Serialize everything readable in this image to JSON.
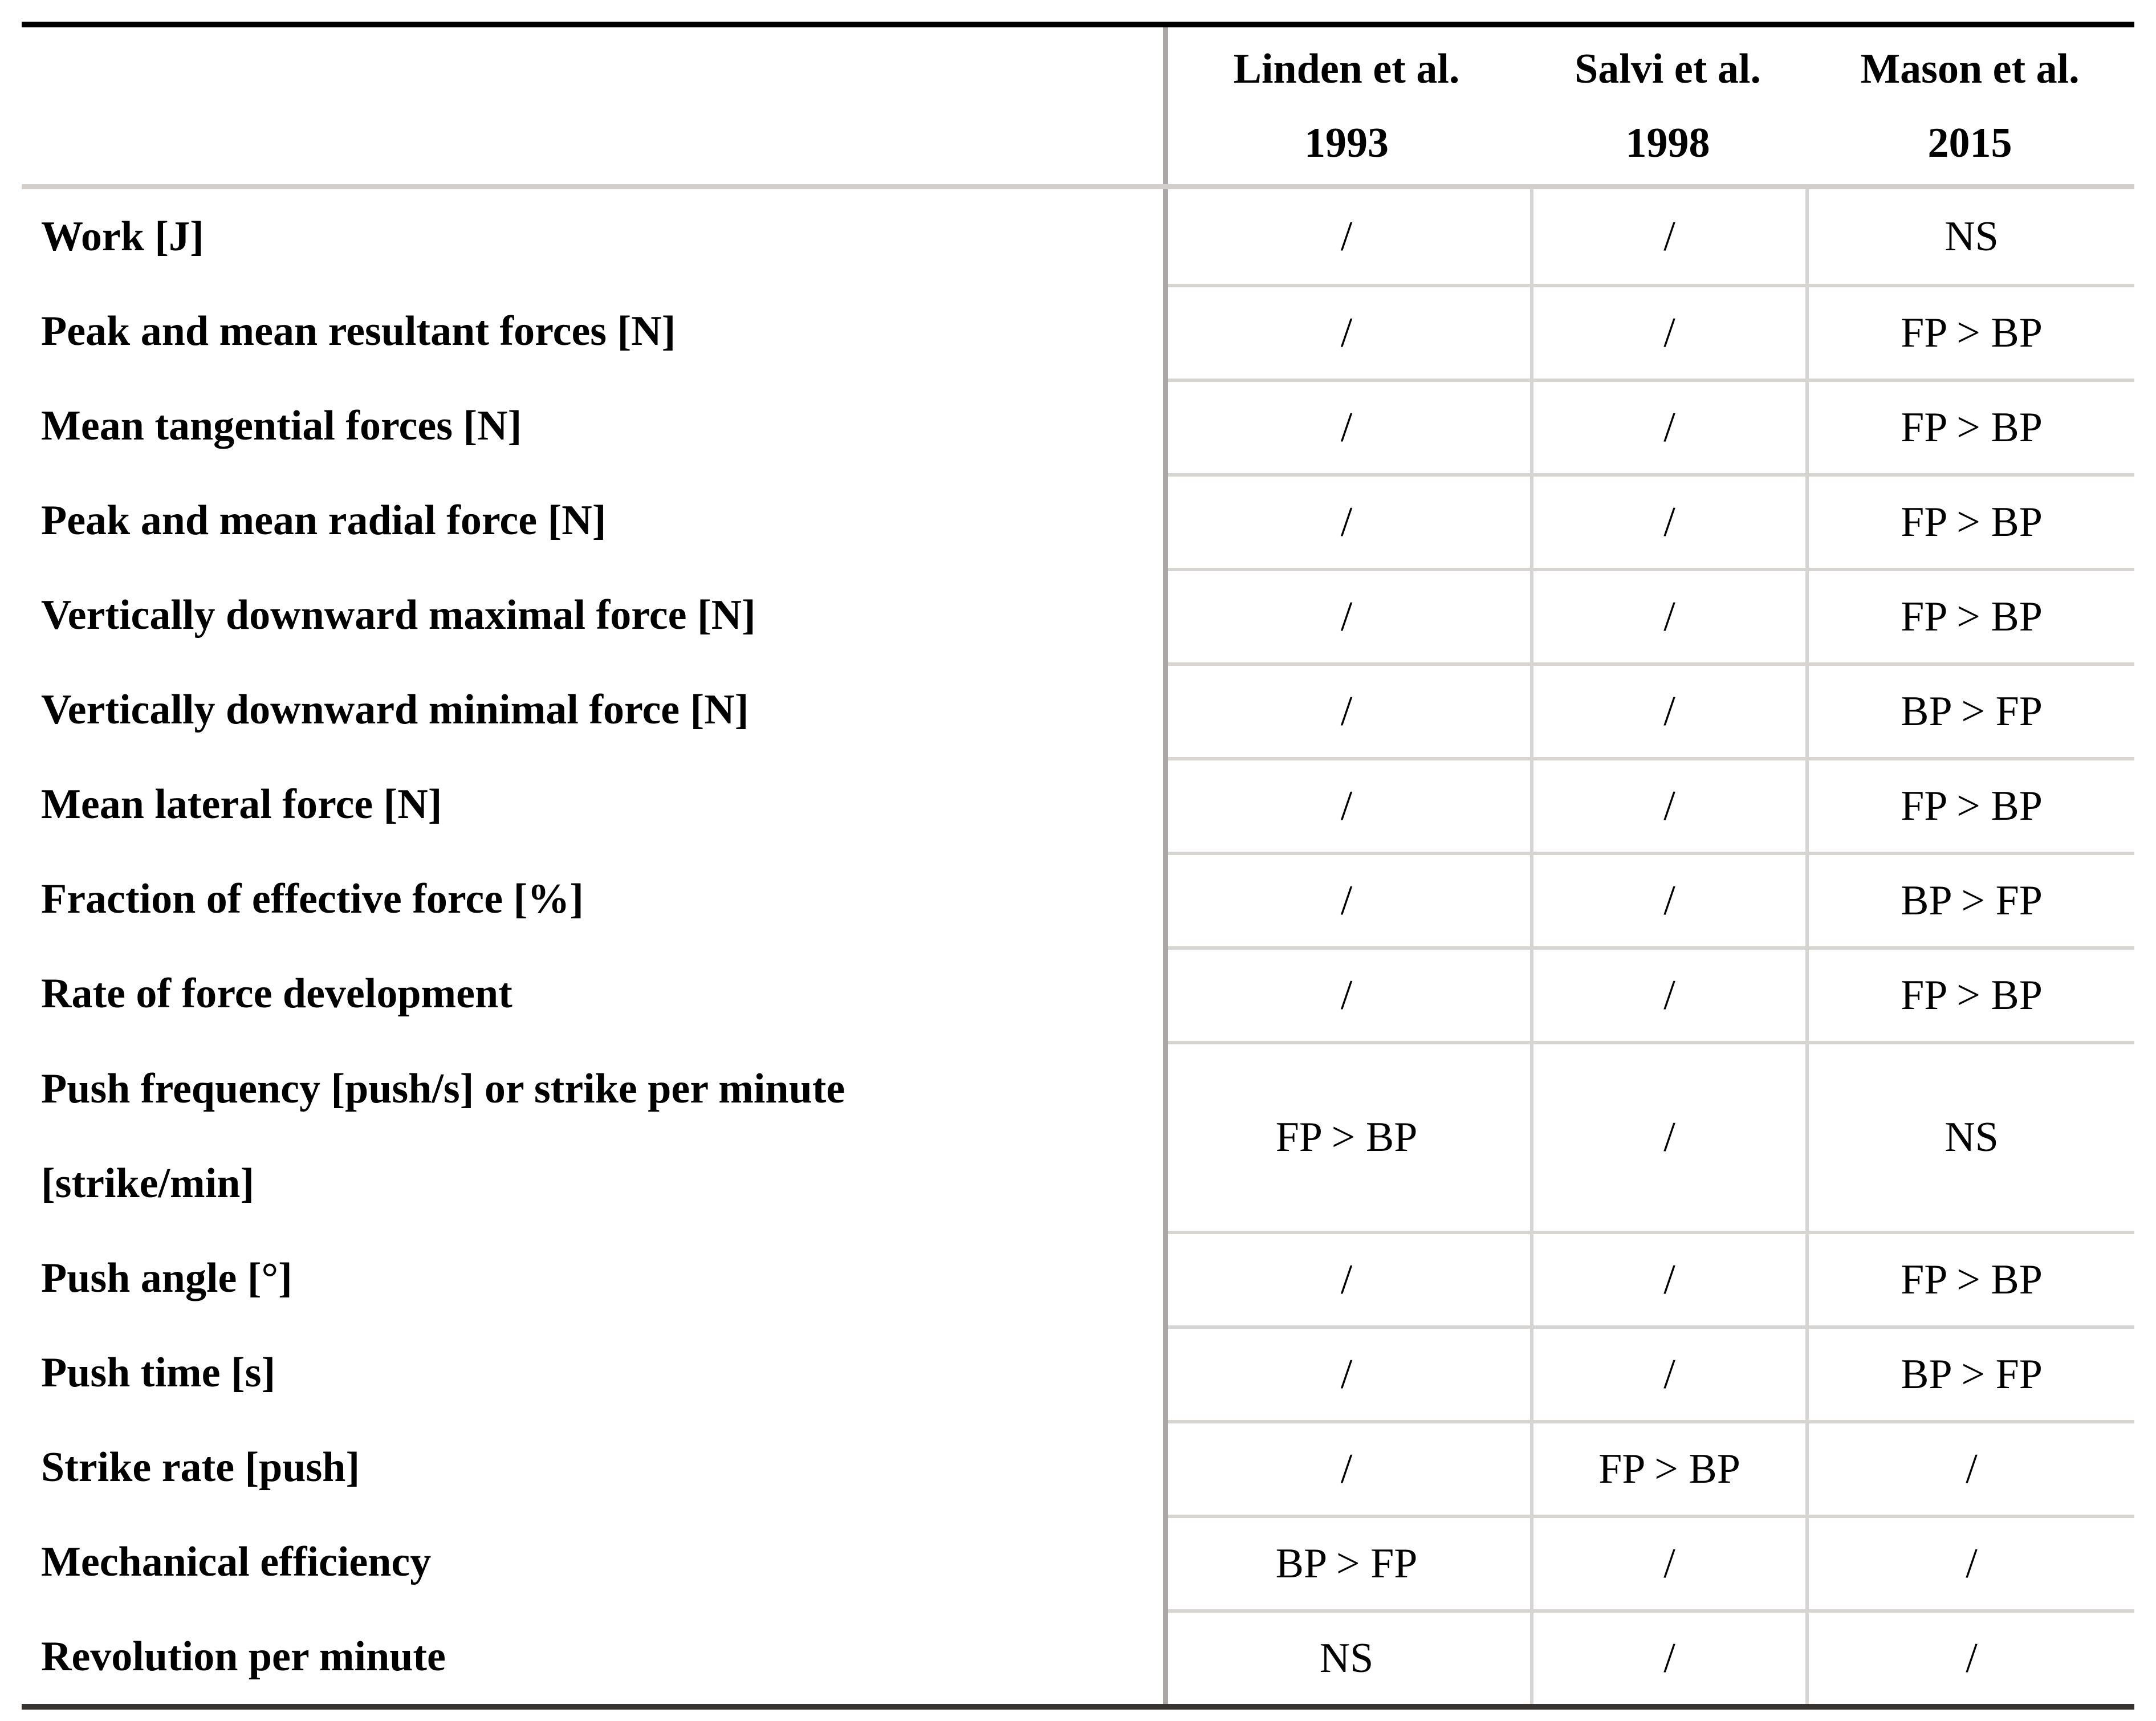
{
  "table": {
    "header": {
      "columns": [
        {
          "line1": "Linden et al.",
          "line2": "1993"
        },
        {
          "line1": "Salvi et al.",
          "line2": "1998"
        },
        {
          "line1": "Mason et al.",
          "line2": "2015"
        }
      ]
    },
    "rows": [
      {
        "label": "Work [J]",
        "cells": [
          "/",
          "/",
          "NS"
        ]
      },
      {
        "label": "Peak and mean resultant forces [N]",
        "cells": [
          "/",
          "/",
          "FP > BP"
        ]
      },
      {
        "label": "Mean tangential forces [N]",
        "cells": [
          "/",
          "/",
          "FP > BP"
        ]
      },
      {
        "label": "Peak and mean radial force [N]",
        "cells": [
          "/",
          "/",
          "FP > BP"
        ]
      },
      {
        "label": "Vertically downward maximal force [N]",
        "cells": [
          "/",
          "/",
          "FP > BP"
        ]
      },
      {
        "label": "Vertically downward minimal force [N]",
        "cells": [
          "/",
          "/",
          "BP > FP"
        ]
      },
      {
        "label": "Mean lateral force [N]",
        "cells": [
          "/",
          "/",
          "FP > BP"
        ]
      },
      {
        "label": "Fraction of effective force [%]",
        "cells": [
          "/",
          "/",
          "BP > FP"
        ]
      },
      {
        "label": "Rate of force development",
        "cells": [
          "/",
          "/",
          "FP > BP"
        ]
      },
      {
        "label": "Push frequency [push/s] or strike per minute",
        "label2": "[strike/min]",
        "double": true,
        "cells": [
          "FP > BP",
          "/",
          "NS"
        ]
      },
      {
        "label": "Push angle [°]",
        "cells": [
          "/",
          "/",
          "FP > BP"
        ]
      },
      {
        "label": "Push time [s]",
        "cells": [
          "/",
          "/",
          "BP > FP"
        ]
      },
      {
        "label": "Strike rate [push]",
        "cells": [
          "/",
          "FP > BP",
          "/"
        ]
      },
      {
        "label": "Mechanical efficiency",
        "cells": [
          "BP > FP",
          "/",
          "/"
        ]
      },
      {
        "label": "Revolution per minute",
        "cells": [
          "NS",
          "/",
          "/"
        ]
      }
    ],
    "colors": {
      "top_border": "#000000",
      "bottom_border": "#383333",
      "header_separator": "#d1cecc",
      "column_divider": "#aba7a6",
      "grid_line": "#d7d5d3",
      "text": "#000000",
      "background": "#ffffff"
    }
  }
}
